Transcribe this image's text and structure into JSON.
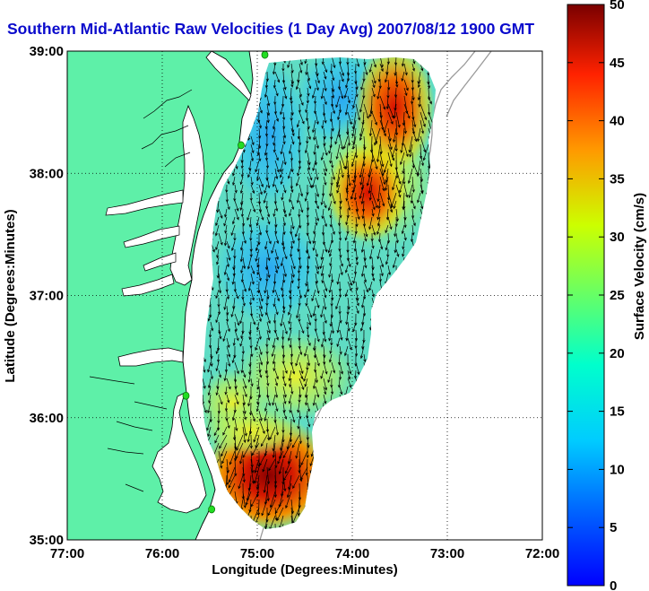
{
  "title": "Southern Mid-Atlantic Raw Velocities (1 Day Avg) 2007/08/12 1900 GMT",
  "axes": {
    "xlabel": "Longitude (Degrees:Minutes)",
    "ylabel": "Latitude (Degrees:Minutes)",
    "x_ticks": [
      "77:00",
      "76:00",
      "75:00",
      "74:00",
      "73:00",
      "72:00"
    ],
    "y_ticks": [
      "39:00",
      "38:00",
      "37:00",
      "36:00",
      "35:00"
    ],
    "xlim": [
      -77,
      -72
    ],
    "ylim": [
      35,
      39
    ],
    "grid": true
  },
  "colorbar": {
    "label": "Surface Velocity (cm/s)",
    "min": 0,
    "max": 50,
    "ticks": [
      "0",
      "5",
      "10",
      "15",
      "20",
      "25",
      "30",
      "35",
      "40",
      "45",
      "50"
    ],
    "colormap": "jet"
  },
  "colors": {
    "land": "#5ef0a8",
    "water": "#ffffff",
    "coast": "#000000",
    "title": "#0a0acc",
    "station": "#22dd22"
  },
  "stations": [
    {
      "lon": -74.92,
      "lat": 38.97
    },
    {
      "lon": -75.17,
      "lat": 38.23
    },
    {
      "lon": -75.75,
      "lat": 36.18
    },
    {
      "lon": -75.48,
      "lat": 35.25
    }
  ]
}
